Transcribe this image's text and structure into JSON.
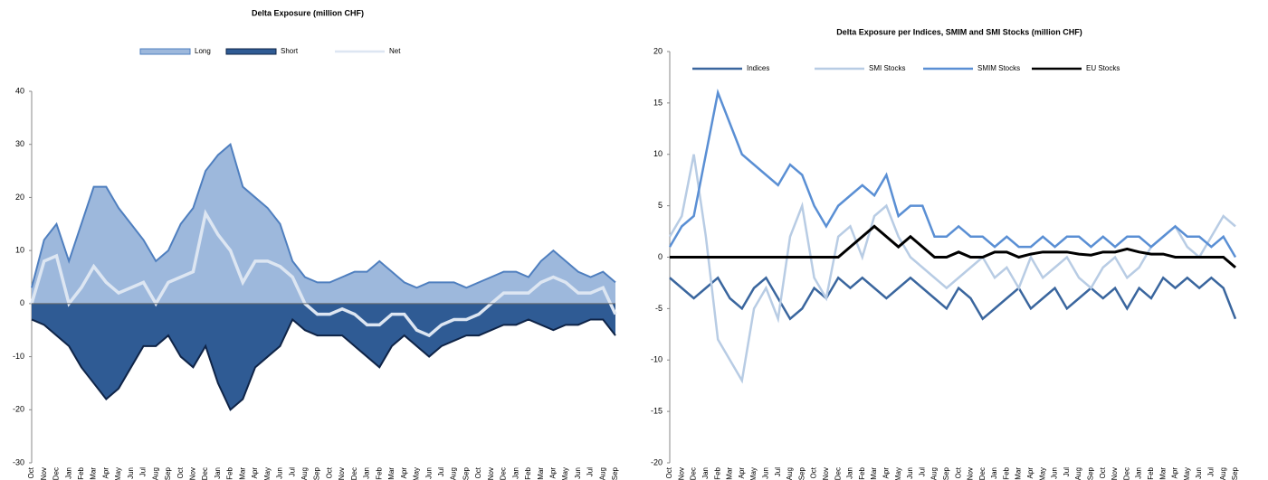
{
  "chart_data": [
    {
      "type": "area",
      "title": "Delta Exposure (million CHF)",
      "categories": [
        "Oct",
        "Nov",
        "Dec",
        "Jan",
        "Feb",
        "Mar",
        "Apr",
        "May",
        "Jun",
        "Jul",
        "Aug",
        "Sep",
        "Oct",
        "Nov",
        "Dec",
        "Jan",
        "Feb",
        "Mar",
        "Apr",
        "May",
        "Jun",
        "Jul",
        "Aug",
        "Sep",
        "Oct",
        "Nov",
        "Dec",
        "Jan",
        "Feb",
        "Mar",
        "Apr",
        "May",
        "Jun",
        "Jul",
        "Aug",
        "Sep",
        "Oct",
        "Nov",
        "Dec",
        "Jan",
        "Feb",
        "Mar",
        "Apr",
        "May",
        "Jun",
        "Jul",
        "Aug",
        "Sep"
      ],
      "series": [
        {
          "name": "Long",
          "color": "#9db8dc",
          "values": [
            3,
            12,
            15,
            8,
            15,
            22,
            22,
            18,
            15,
            12,
            8,
            10,
            15,
            18,
            25,
            28,
            30,
            22,
            20,
            18,
            15,
            8,
            5,
            4,
            4,
            5,
            6,
            6,
            8,
            6,
            4,
            3,
            4,
            4,
            4,
            3,
            4,
            5,
            6,
            6,
            5,
            8,
            10,
            8,
            6,
            5,
            6,
            4
          ]
        },
        {
          "name": "Short",
          "color": "#2f5b94",
          "values": [
            -3,
            -4,
            -6,
            -8,
            -12,
            -15,
            -18,
            -16,
            -12,
            -8,
            -8,
            -6,
            -10,
            -12,
            -8,
            -15,
            -20,
            -18,
            -12,
            -10,
            -8,
            -3,
            -5,
            -6,
            -6,
            -6,
            -8,
            -10,
            -12,
            -8,
            -6,
            -8,
            -10,
            -8,
            -7,
            -6,
            -6,
            -5,
            -4,
            -4,
            -3,
            -4,
            -5,
            -4,
            -4,
            -3,
            -3,
            -6
          ]
        },
        {
          "name": "Net",
          "color": "#dde6f2",
          "values": [
            0,
            8,
            9,
            0,
            3,
            7,
            4,
            2,
            3,
            4,
            0,
            4,
            5,
            6,
            17,
            13,
            10,
            4,
            8,
            8,
            7,
            5,
            0,
            -2,
            -2,
            -1,
            -2,
            -4,
            -4,
            -2,
            -2,
            -5,
            -6,
            -4,
            -3,
            -3,
            -2,
            0,
            2,
            2,
            2,
            4,
            5,
            4,
            2,
            2,
            3,
            -2
          ]
        }
      ],
      "ylim": [
        -30,
        40
      ],
      "yticks": [
        -30,
        -20,
        -10,
        0,
        10,
        20,
        30,
        40
      ],
      "grid": false,
      "legend": "top"
    },
    {
      "type": "line",
      "title": "Delta Exposure per Indices, SMIM and SMI Stocks (million CHF)",
      "categories": [
        "Oct",
        "Nov",
        "Dec",
        "Jan",
        "Feb",
        "Mar",
        "Apr",
        "May",
        "Jun",
        "Jul",
        "Aug",
        "Sep",
        "Oct",
        "Nov",
        "Dec",
        "Jan",
        "Feb",
        "Mar",
        "Apr",
        "May",
        "Jun",
        "Jul",
        "Aug",
        "Sep",
        "Oct",
        "Nov",
        "Dec",
        "Jan",
        "Feb",
        "Mar",
        "Apr",
        "May",
        "Jun",
        "Jul",
        "Aug",
        "Sep",
        "Oct",
        "Nov",
        "Dec",
        "Jan",
        "Feb",
        "Mar",
        "Apr",
        "May",
        "Jun",
        "Jul",
        "Aug",
        "Sep"
      ],
      "series": [
        {
          "name": "Indices",
          "color": "#3a669e",
          "values": [
            -2,
            -3,
            -4,
            -3,
            -2,
            -4,
            -5,
            -3,
            -2,
            -4,
            -6,
            -5,
            -3,
            -4,
            -2,
            -3,
            -2,
            -3,
            -4,
            -3,
            -2,
            -3,
            -4,
            -5,
            -3,
            -4,
            -6,
            -5,
            -4,
            -3,
            -5,
            -4,
            -3,
            -5,
            -4,
            -3,
            -4,
            -3,
            -5,
            -3,
            -4,
            -2,
            -3,
            -2,
            -3,
            -2,
            -3,
            -6
          ]
        },
        {
          "name": "SMI Stocks",
          "color": "#b8cce4",
          "values": [
            2,
            4,
            10,
            2,
            -8,
            -10,
            -12,
            -5,
            -3,
            -6,
            2,
            5,
            -2,
            -4,
            2,
            3,
            0,
            4,
            5,
            2,
            0,
            -1,
            -2,
            -3,
            -2,
            -1,
            0,
            -2,
            -1,
            -3,
            0,
            -2,
            -1,
            0,
            -2,
            -3,
            -1,
            0,
            -2,
            -1,
            1,
            2,
            3,
            1,
            0,
            2,
            4,
            3
          ]
        },
        {
          "name": "SMIM Stocks",
          "color": "#5a8fd4",
          "values": [
            1,
            3,
            4,
            10,
            16,
            13,
            10,
            9,
            8,
            7,
            9,
            8,
            5,
            3,
            5,
            6,
            7,
            6,
            8,
            4,
            5,
            5,
            2,
            2,
            3,
            2,
            2,
            1,
            2,
            1,
            1,
            2,
            1,
            2,
            2,
            1,
            2,
            1,
            2,
            2,
            1,
            2,
            3,
            2,
            2,
            1,
            2,
            0
          ]
        },
        {
          "name": "EU Stocks",
          "color": "#000000",
          "values": [
            0,
            0,
            0,
            0,
            0,
            0,
            0,
            0,
            0,
            0,
            0,
            0,
            0,
            0,
            0,
            1,
            2,
            3,
            2,
            1,
            2,
            1,
            0,
            0,
            0.5,
            0,
            0,
            0.5,
            0.5,
            0,
            0.3,
            0.5,
            0.5,
            0.5,
            0.3,
            0.2,
            0.5,
            0.5,
            0.8,
            0.5,
            0.3,
            0.3,
            0,
            0,
            0,
            0,
            0,
            -1
          ]
        }
      ],
      "ylim": [
        -20,
        20
      ],
      "yticks": [
        -20,
        -15,
        -10,
        -5,
        0,
        5,
        10,
        15,
        20
      ],
      "grid": false,
      "legend": "top"
    }
  ]
}
